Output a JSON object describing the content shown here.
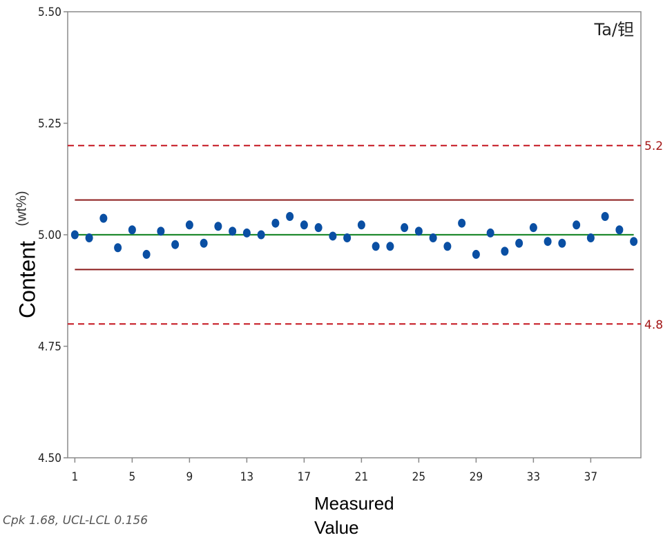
{
  "chart_data": {
    "type": "scatter",
    "series_label": "Ta/钽",
    "ylabel": "Content",
    "ylabel_unit": "(wt%)",
    "xlabel": "Measured Value",
    "ylim": [
      4.5,
      5.5
    ],
    "xlim": [
      0.5,
      40.5
    ],
    "yticks": [
      "4.50",
      "4.75",
      "5.00",
      "5.25",
      "5.50"
    ],
    "xticks": [
      1,
      5,
      9,
      13,
      17,
      21,
      25,
      29,
      33,
      37
    ],
    "center_line": 5.0,
    "control_limits": {
      "ucl": 5.078,
      "lcl": 4.922
    },
    "spec_limits": {
      "usl": 5.2,
      "lsl": 4.8,
      "usl_label": "5.2",
      "lsl_label": "4.8"
    },
    "x": [
      1,
      2,
      3,
      4,
      5,
      6,
      7,
      8,
      9,
      10,
      11,
      12,
      13,
      14,
      15,
      16,
      17,
      18,
      19,
      20,
      21,
      22,
      23,
      24,
      25,
      26,
      27,
      28,
      29,
      30,
      31,
      32,
      33,
      34,
      35,
      36,
      37,
      38,
      39,
      40
    ],
    "y": [
      5.0,
      4.993,
      5.037,
      4.971,
      5.011,
      4.956,
      5.008,
      4.978,
      5.022,
      4.981,
      5.019,
      5.008,
      5.004,
      5.0,
      5.026,
      5.041,
      5.022,
      5.016,
      4.997,
      4.993,
      5.022,
      4.974,
      4.974,
      5.016,
      5.008,
      4.993,
      4.974,
      5.026,
      4.956,
      5.004,
      4.963,
      4.981,
      5.016,
      4.985,
      4.981,
      5.022,
      4.993,
      5.041,
      5.011,
      4.985
    ],
    "grid": false,
    "colors": {
      "points": "#0a4fa3",
      "center": "#1f8a2e",
      "control": "#8b1a1a",
      "spec": "#c8202a",
      "axis": "#888888"
    }
  },
  "footnote": "Cpk 1.68,  UCL-LCL 0.156",
  "xlabel_line1": "Measured",
  "xlabel_line2": "Value"
}
